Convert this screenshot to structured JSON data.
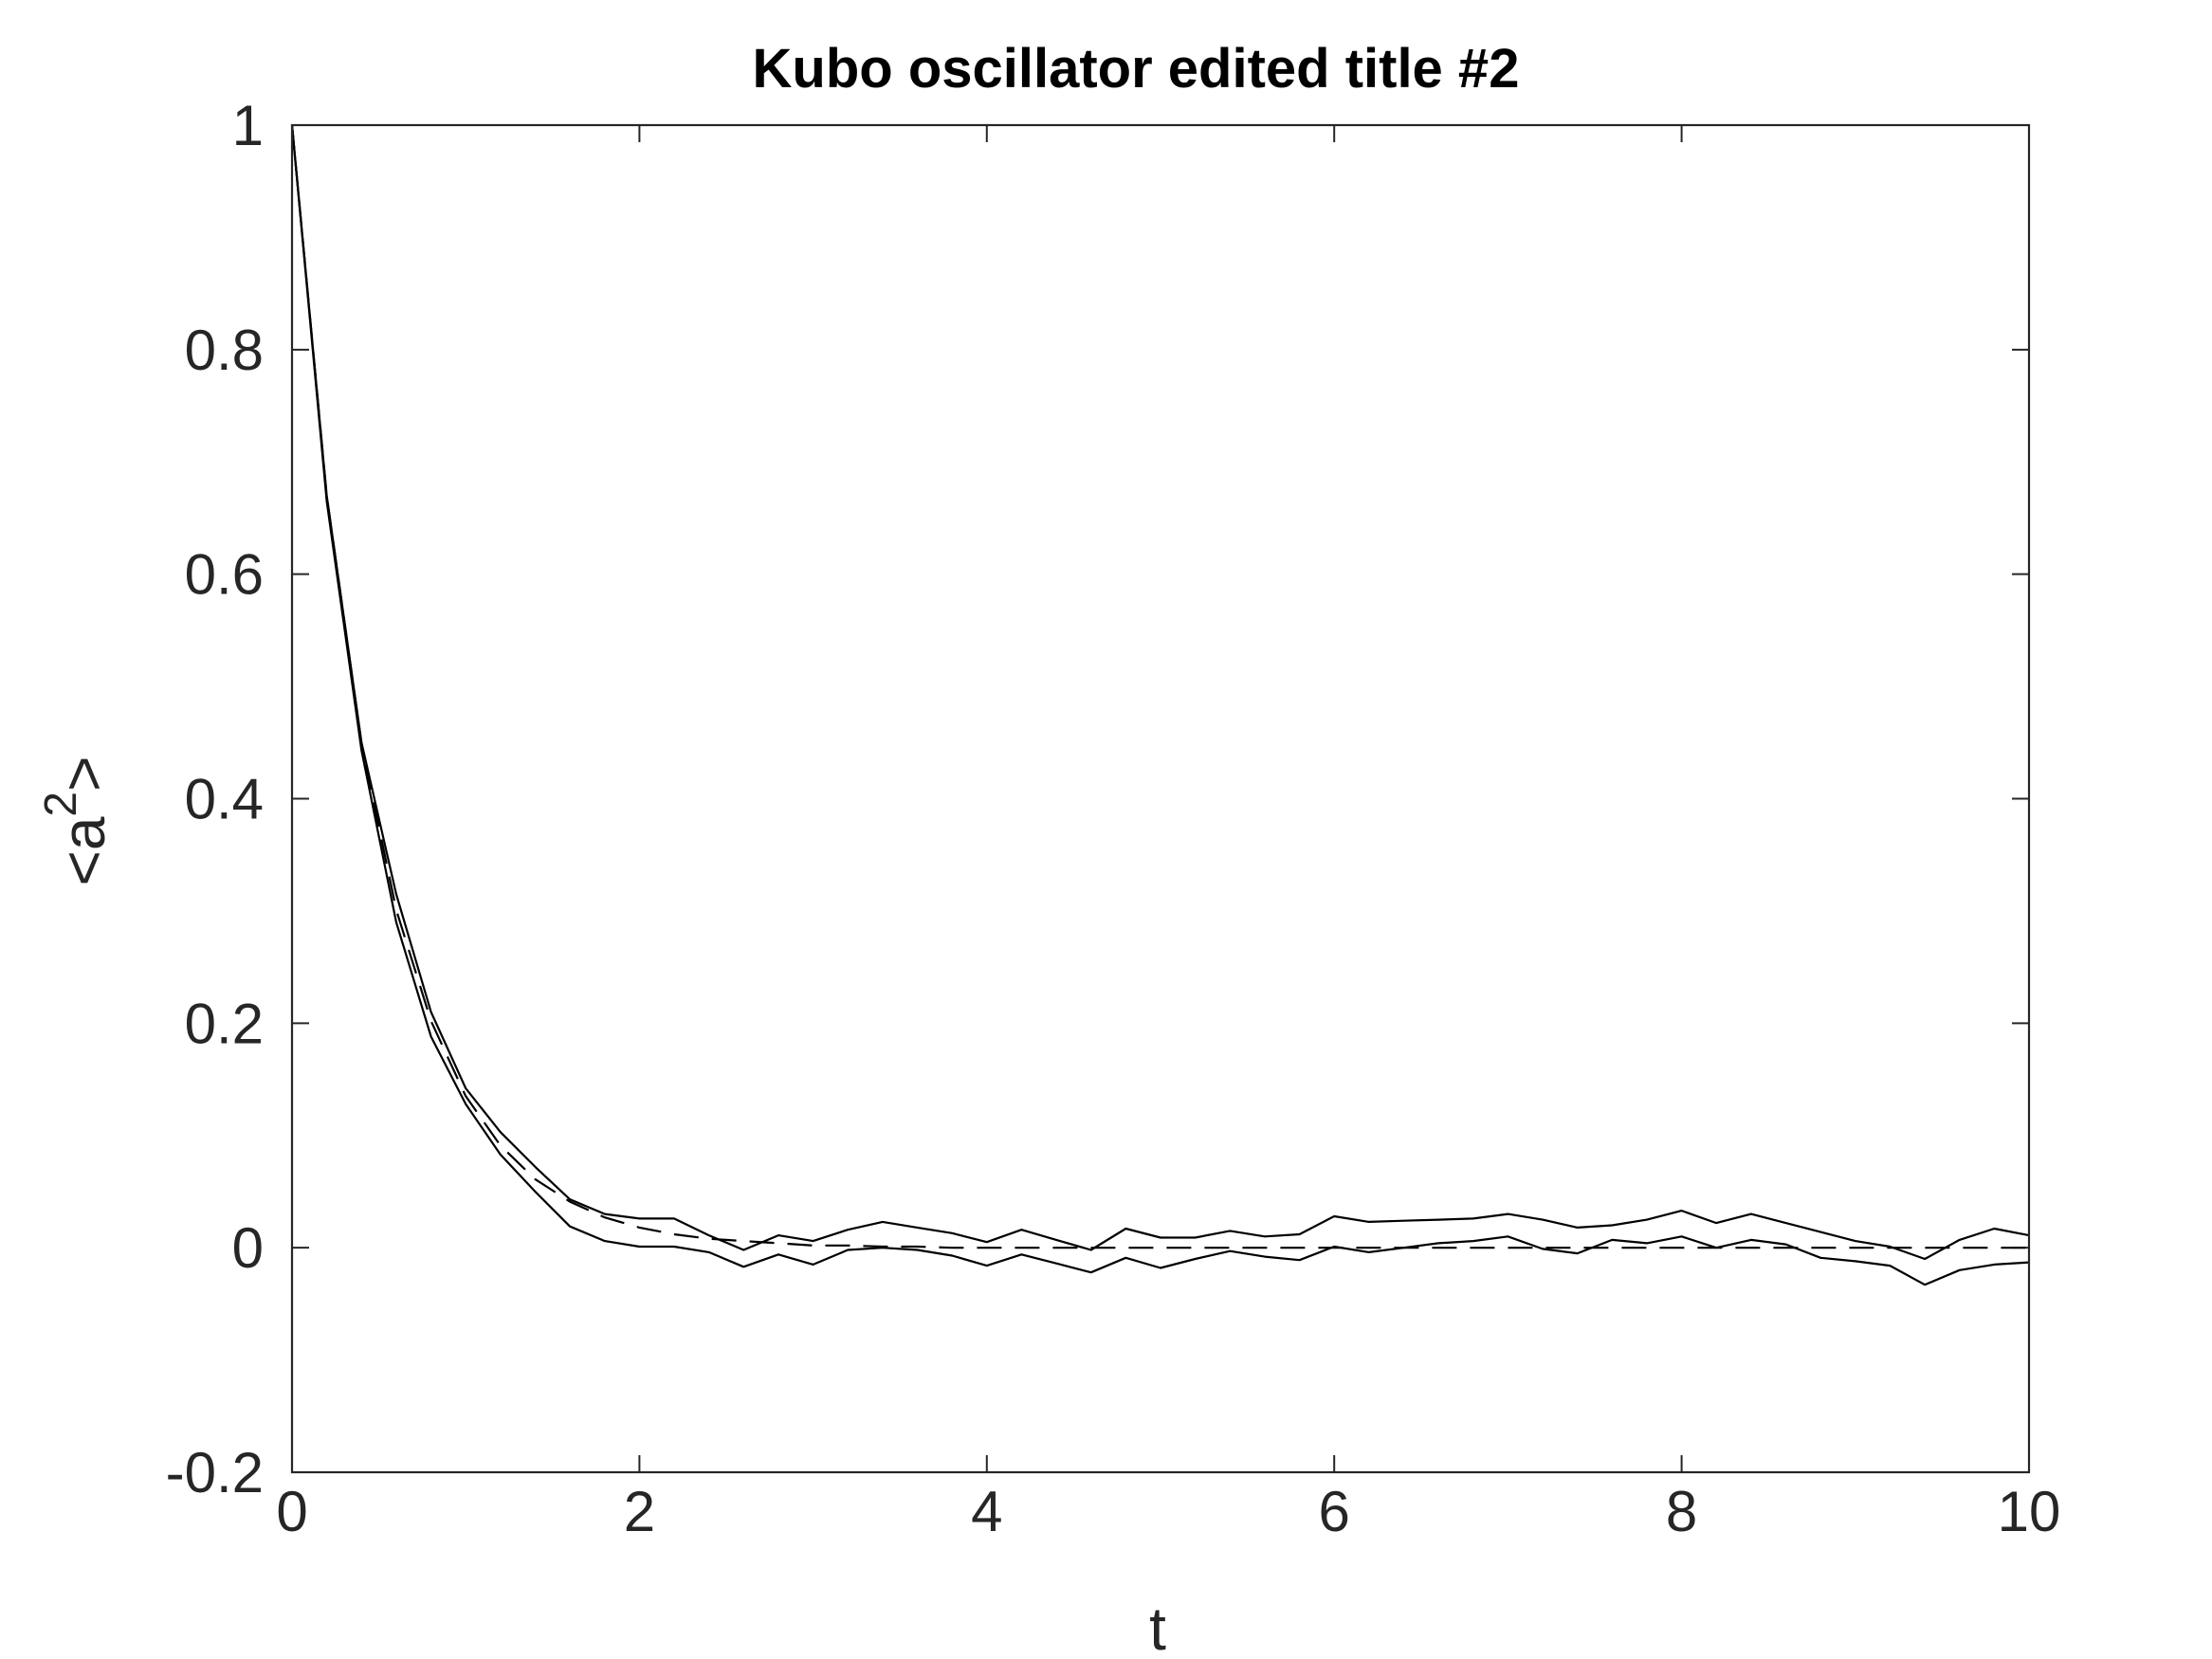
{
  "chart_data": {
    "type": "line",
    "title": "Kubo oscillator edited title #2",
    "xlabel": "t",
    "ylabel": "<a^2>",
    "ylabel_parts": {
      "base": "a",
      "exponent": "2",
      "open": "<",
      "close": ">"
    },
    "xlim": [
      0,
      10
    ],
    "ylim": [
      -0.2,
      1
    ],
    "xticks": [
      0,
      2,
      4,
      6,
      8,
      10
    ],
    "xtick_labels": [
      "0",
      "2",
      "4",
      "6",
      "8",
      "10"
    ],
    "yticks": [
      -0.2,
      0,
      0.2,
      0.4,
      0.6,
      0.8,
      1
    ],
    "ytick_labels": [
      "-0.2",
      "0",
      "0.2",
      "0.4",
      "0.6",
      "0.8",
      "1"
    ],
    "grid": false,
    "line_color": "#000000",
    "x": [
      0,
      0.2,
      0.4,
      0.6,
      0.8,
      1.0,
      1.2,
      1.4,
      1.6,
      1.8,
      2.0,
      2.2,
      2.4,
      2.6,
      2.8,
      3.0,
      3.2,
      3.4,
      3.6,
      3.8,
      4.0,
      4.2,
      4.4,
      4.6,
      4.8,
      5.0,
      5.2,
      5.4,
      5.6,
      5.8,
      6.0,
      6.2,
      6.4,
      6.6,
      6.8,
      7.0,
      7.2,
      7.4,
      7.6,
      7.8,
      8.0,
      8.2,
      8.4,
      8.6,
      8.8,
      9.0,
      9.2,
      9.4,
      9.6,
      9.8,
      10.0
    ],
    "series": [
      {
        "style": "solid",
        "values": [
          1.0,
          0.67,
          0.45,
          0.315,
          0.21,
          0.142,
          0.103,
          0.072,
          0.043,
          0.03,
          0.026,
          0.026,
          0.011,
          -0.002,
          0.011,
          0.006,
          0.016,
          0.023,
          0.018,
          0.013,
          0.005,
          0.016,
          0.007,
          -0.002,
          0.017,
          0.009,
          0.009,
          0.015,
          0.01,
          0.012,
          0.028,
          0.023,
          0.024,
          0.025,
          0.026,
          0.03,
          0.025,
          0.018,
          0.02,
          0.025,
          0.033,
          0.022,
          0.03,
          0.022,
          0.014,
          0.006,
          0.001,
          -0.01,
          0.007,
          0.017,
          0.011
        ]
      },
      {
        "style": "solid",
        "values": [
          1.0,
          0.665,
          0.443,
          0.29,
          0.188,
          0.128,
          0.083,
          0.05,
          0.019,
          0.006,
          0.001,
          0.001,
          -0.004,
          -0.017,
          -0.006,
          -0.015,
          -0.002,
          0.0,
          -0.002,
          -0.007,
          -0.016,
          -0.006,
          -0.014,
          -0.022,
          -0.009,
          -0.018,
          -0.01,
          -0.003,
          -0.008,
          -0.011,
          0.001,
          -0.004,
          0.0,
          0.004,
          0.006,
          0.01,
          -0.001,
          -0.005,
          0.007,
          0.004,
          0.01,
          0.0,
          0.007,
          0.003,
          -0.009,
          -0.012,
          -0.016,
          -0.033,
          -0.02,
          -0.015,
          -0.013
        ]
      },
      {
        "style": "dashed",
        "values": [
          1.0,
          0.67,
          0.449,
          0.301,
          0.202,
          0.135,
          0.091,
          0.061,
          0.041,
          0.027,
          0.018,
          0.012,
          0.008,
          0.006,
          0.004,
          0.002,
          0.002,
          0.001,
          0.001,
          0.0,
          0.0,
          0.0,
          0.0,
          0.0,
          0.0,
          0.0,
          0.0,
          0.0,
          0.0,
          0.0,
          0.0,
          0.0,
          0.0,
          0.0,
          0.0,
          0.0,
          0.0,
          0.0,
          0.0,
          0.0,
          0.0,
          0.0,
          0.0,
          0.0,
          0.0,
          0.0,
          0.0,
          0.0,
          0.0,
          0.0,
          0.0
        ]
      }
    ]
  }
}
